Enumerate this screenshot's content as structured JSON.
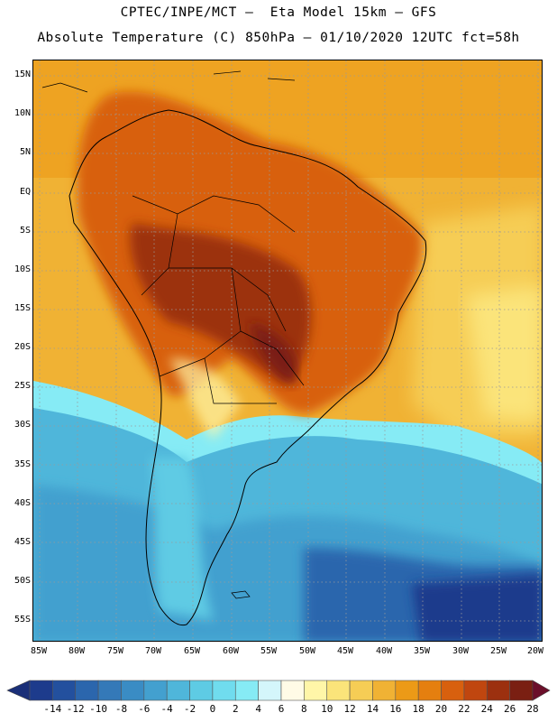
{
  "title": {
    "line1": "CPTEC/INPE/MCT –  Eta Model 15km – GFS",
    "line2": "Absolute Temperature (C) 850hPa – 01/10/2020 12UTC fct=58h"
  },
  "map": {
    "lat_labels": [
      "15N",
      "10N",
      "5N",
      "EQ",
      "5S",
      "10S",
      "15S",
      "20S",
      "25S",
      "30S",
      "35S",
      "40S",
      "45S",
      "50S",
      "55S"
    ],
    "lon_labels": [
      "85W",
      "80W",
      "75W",
      "70W",
      "65W",
      "60W",
      "55W",
      "50W",
      "45W",
      "40W",
      "35W",
      "30W",
      "25W",
      "20W"
    ],
    "grid": "dotted",
    "region": "South America"
  },
  "colorbar": {
    "labels": [
      "-14",
      "-12",
      "-10",
      "-8",
      "-6",
      "-4",
      "-2",
      "0",
      "2",
      "4",
      "6",
      "8",
      "10",
      "12",
      "14",
      "16",
      "18",
      "20",
      "22",
      "24",
      "26",
      "28"
    ],
    "colors": [
      "#1d3b8c",
      "#23509e",
      "#2b66ad",
      "#3479b8",
      "#3a8cc4",
      "#43a0cf",
      "#4fb6da",
      "#5ecbe4",
      "#70dcee",
      "#86ebf5",
      "#d4f6fb",
      "#fffbe6",
      "#fff6a8",
      "#fbe47a",
      "#f6cd55",
      "#f0b234",
      "#ec9a17",
      "#e57f0f",
      "#d8600e",
      "#c0460f",
      "#9c300f",
      "#7a1f12"
    ],
    "low_arrow_color": "#1a2f78",
    "high_arrow_color": "#6b0f2a"
  }
}
